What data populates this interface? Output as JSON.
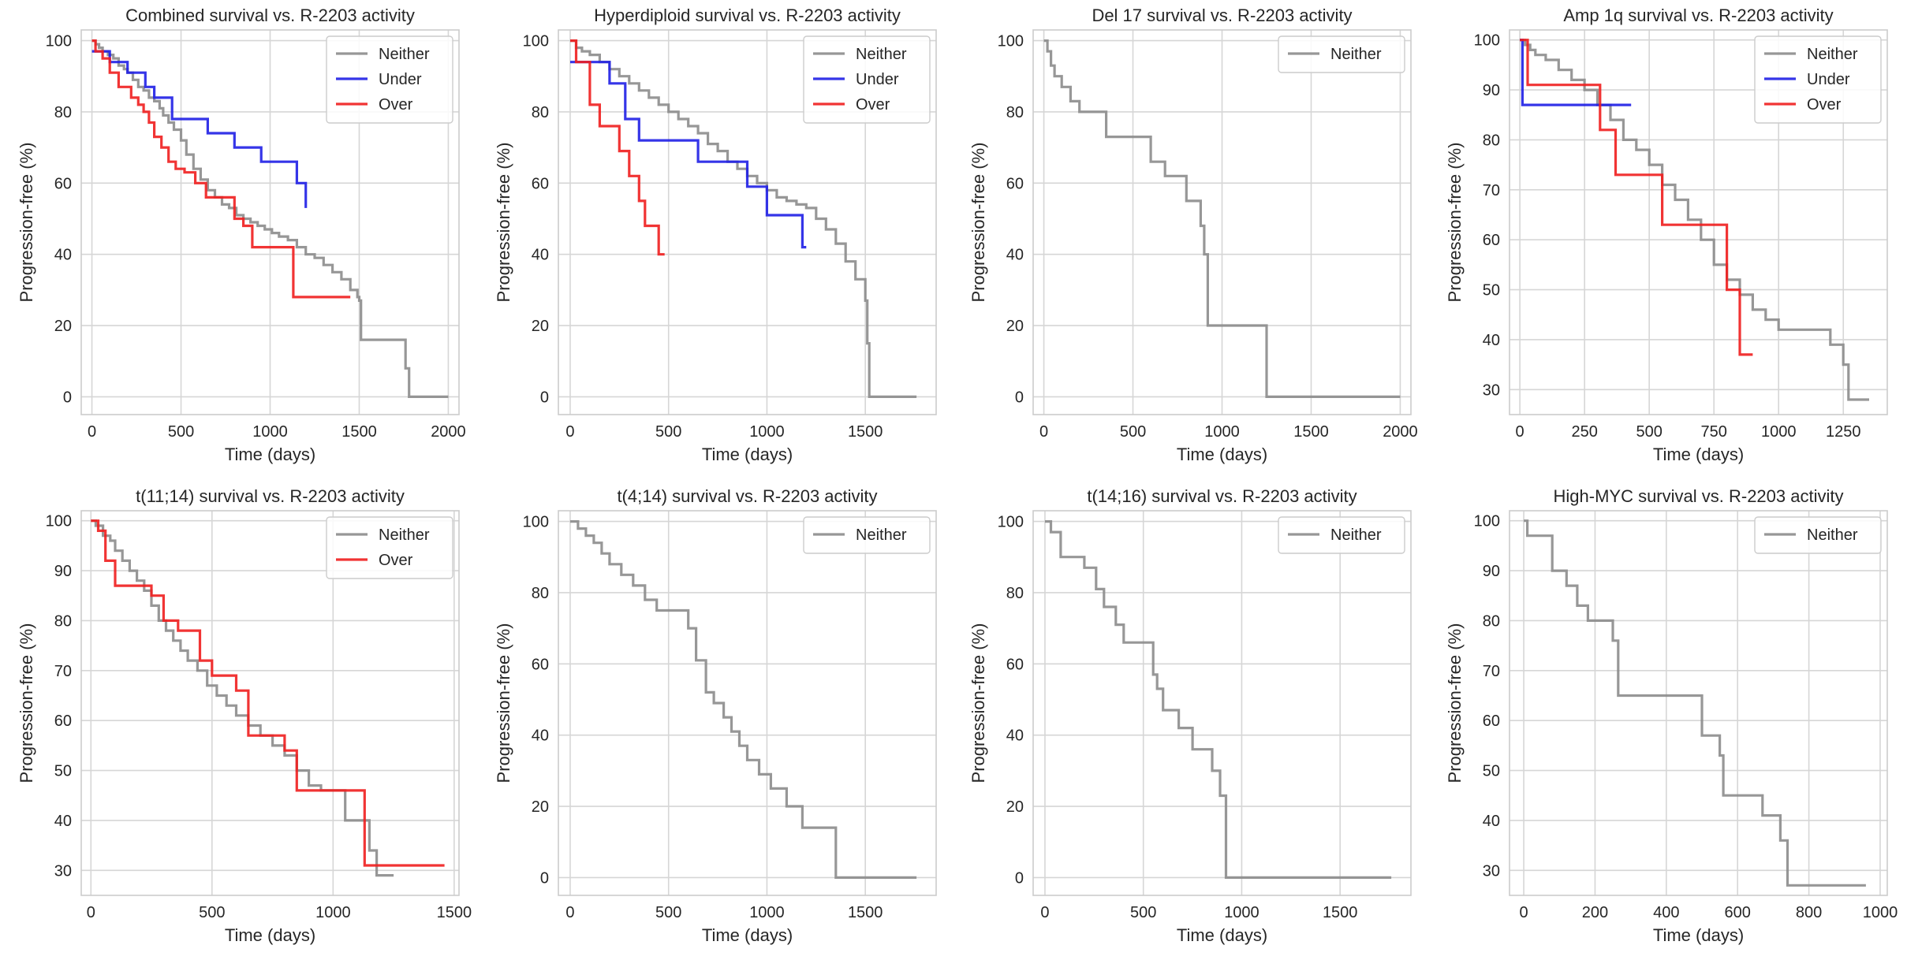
{
  "colors": {
    "Neither": "#8c8c8c",
    "Under": "#1f1fe6",
    "Over": "#f01e1e",
    "grid": "#d6d6d6",
    "frame": "#cccccc"
  },
  "chart_data": [
    {
      "type": "line",
      "step": true,
      "title": "Combined survival vs. R-2203 activity",
      "xlabel": "Time (days)",
      "ylabel": "Progression-free (%)",
      "xlim": [
        -60,
        2060
      ],
      "ylim": [
        -5,
        103
      ],
      "xticks": [
        0,
        500,
        1000,
        1500,
        2000
      ],
      "xtick_labels": [
        "0",
        "500",
        "1000",
        "1500",
        "2000"
      ],
      "yticks": [
        0,
        20,
        40,
        60,
        80,
        100
      ],
      "ytick_labels": [
        "0",
        "20",
        "40",
        "60",
        "80",
        "100"
      ],
      "legend": [
        "Neither",
        "Under",
        "Over"
      ],
      "series": [
        {
          "name": "Neither",
          "x": [
            0,
            20,
            40,
            60,
            90,
            120,
            150,
            180,
            200,
            230,
            260,
            290,
            320,
            350,
            380,
            400,
            430,
            460,
            500,
            530,
            570,
            610,
            650,
            690,
            730,
            770,
            810,
            850,
            890,
            930,
            970,
            1010,
            1050,
            1100,
            1150,
            1200,
            1250,
            1300,
            1350,
            1400,
            1450,
            1490,
            1500,
            1510,
            1750,
            1760,
            1780,
            2000
          ],
          "y": [
            100,
            99,
            98,
            97,
            96,
            95,
            93,
            92,
            91,
            89,
            87,
            86,
            84,
            83,
            81,
            79,
            77,
            75,
            72,
            68,
            64,
            61,
            58,
            56,
            54,
            53,
            51,
            50,
            49,
            48,
            47,
            46,
            45,
            44,
            42,
            40,
            39,
            37,
            35,
            33,
            30,
            28,
            27,
            16,
            16,
            8,
            0,
            0
          ]
        },
        {
          "name": "Under",
          "x": [
            0,
            50,
            100,
            200,
            300,
            350,
            450,
            650,
            800,
            950,
            1150,
            1200
          ],
          "y": [
            97,
            97,
            94,
            91,
            87,
            84,
            78,
            74,
            70,
            66,
            60,
            53
          ]
        },
        {
          "name": "Over",
          "x": [
            0,
            20,
            60,
            100,
            150,
            220,
            260,
            290,
            320,
            350,
            390,
            430,
            470,
            520,
            580,
            640,
            800,
            850,
            900,
            1000,
            1130,
            1450
          ],
          "y": [
            100,
            97,
            95,
            91,
            87,
            84,
            82,
            80,
            77,
            73,
            70,
            66,
            64,
            63,
            60,
            56,
            50,
            48,
            42,
            42,
            28,
            28
          ]
        }
      ]
    },
    {
      "type": "line",
      "step": true,
      "title": "Hyperdiploid survival vs. R-2203 activity",
      "xlabel": "Time (days)",
      "ylabel": "Progression-free (%)",
      "xlim": [
        -60,
        1860
      ],
      "ylim": [
        -5,
        103
      ],
      "xticks": [
        0,
        500,
        1000,
        1500
      ],
      "xtick_labels": [
        "0",
        "500",
        "1000",
        "1500"
      ],
      "yticks": [
        0,
        20,
        40,
        60,
        80,
        100
      ],
      "ytick_labels": [
        "0",
        "20",
        "40",
        "60",
        "80",
        "100"
      ],
      "legend": [
        "Neither",
        "Under",
        "Over"
      ],
      "series": [
        {
          "name": "Neither",
          "x": [
            0,
            30,
            60,
            100,
            150,
            200,
            250,
            300,
            350,
            400,
            450,
            500,
            550,
            600,
            650,
            700,
            750,
            800,
            850,
            900,
            950,
            1000,
            1050,
            1100,
            1150,
            1200,
            1250,
            1300,
            1350,
            1400,
            1450,
            1500,
            1510,
            1520,
            1760
          ],
          "y": [
            100,
            98,
            97,
            96,
            94,
            92,
            90,
            88,
            86,
            84,
            82,
            80,
            78,
            76,
            74,
            71,
            69,
            66,
            64,
            62,
            60,
            58,
            56,
            55,
            54,
            53,
            50,
            47,
            43,
            38,
            33,
            27,
            15,
            0,
            0
          ]
        },
        {
          "name": "Under",
          "x": [
            0,
            200,
            280,
            350,
            500,
            650,
            850,
            900,
            1000,
            1180,
            1200
          ],
          "y": [
            94,
            88,
            78,
            72,
            72,
            66,
            66,
            59,
            51,
            42,
            42
          ]
        },
        {
          "name": "Over",
          "x": [
            0,
            30,
            100,
            150,
            250,
            300,
            350,
            380,
            450,
            480
          ],
          "y": [
            100,
            94,
            82,
            76,
            69,
            62,
            55,
            48,
            40,
            40
          ]
        }
      ]
    },
    {
      "type": "line",
      "step": true,
      "title": "Del 17 survival vs. R-2203 activity",
      "xlabel": "Time (days)",
      "ylabel": "Progression-free (%)",
      "xlim": [
        -60,
        2060
      ],
      "ylim": [
        -5,
        103
      ],
      "xticks": [
        0,
        500,
        1000,
        1500,
        2000
      ],
      "xtick_labels": [
        "0",
        "500",
        "1000",
        "1500",
        "2000"
      ],
      "yticks": [
        0,
        20,
        40,
        60,
        80,
        100
      ],
      "ytick_labels": [
        "0",
        "20",
        "40",
        "60",
        "80",
        "100"
      ],
      "legend": [
        "Neither"
      ],
      "series": [
        {
          "name": "Neither",
          "x": [
            0,
            20,
            40,
            60,
            100,
            150,
            200,
            350,
            600,
            680,
            800,
            880,
            900,
            920,
            1250,
            2000
          ],
          "y": [
            100,
            97,
            93,
            90,
            87,
            83,
            80,
            73,
            66,
            62,
            55,
            48,
            40,
            20,
            0,
            0
          ]
        }
      ]
    },
    {
      "type": "line",
      "step": true,
      "title": "Amp 1q survival vs. R-2203 activity",
      "xlabel": "Time (days)",
      "ylabel": "Progression-free (%)",
      "xlim": [
        -40,
        1420
      ],
      "ylim": [
        25,
        102
      ],
      "xticks": [
        0,
        250,
        500,
        750,
        1000,
        1250
      ],
      "xtick_labels": [
        "0",
        "250",
        "500",
        "750",
        "1000",
        "1250"
      ],
      "yticks": [
        30,
        40,
        50,
        60,
        70,
        80,
        90,
        100
      ],
      "ytick_labels": [
        "30",
        "40",
        "50",
        "60",
        "70",
        "80",
        "90",
        "100"
      ],
      "legend": [
        "Neither",
        "Under",
        "Over"
      ],
      "series": [
        {
          "name": "Neither",
          "x": [
            0,
            20,
            40,
            60,
            100,
            150,
            200,
            250,
            300,
            350,
            400,
            450,
            500,
            550,
            600,
            650,
            700,
            750,
            800,
            850,
            900,
            950,
            1000,
            1100,
            1200,
            1250,
            1270,
            1300,
            1350
          ],
          "y": [
            100,
            99,
            98,
            97,
            96,
            94,
            92,
            90,
            87,
            84,
            80,
            78,
            75,
            71,
            68,
            64,
            60,
            55,
            52,
            49,
            46,
            44,
            42,
            42,
            39,
            35,
            28,
            28,
            28
          ]
        },
        {
          "name": "Under",
          "x": [
            0,
            10,
            430
          ],
          "y": [
            100,
            87,
            87
          ]
        },
        {
          "name": "Over",
          "x": [
            0,
            30,
            310,
            370,
            550,
            800,
            850,
            900
          ],
          "y": [
            100,
            91,
            82,
            73,
            63,
            50,
            37,
            37
          ]
        }
      ]
    },
    {
      "type": "line",
      "step": true,
      "title": "t(11;14) survival vs. R-2203 activity",
      "xlabel": "Time (days)",
      "ylabel": "Progression-free (%)",
      "xlim": [
        -40,
        1520
      ],
      "ylim": [
        25,
        102
      ],
      "xticks": [
        0,
        500,
        1000,
        1500
      ],
      "xtick_labels": [
        "0",
        "500",
        "1000",
        "1500"
      ],
      "yticks": [
        30,
        40,
        50,
        60,
        70,
        80,
        90,
        100
      ],
      "ytick_labels": [
        "30",
        "40",
        "50",
        "60",
        "70",
        "80",
        "90",
        "100"
      ],
      "legend": [
        "Neither",
        "Over"
      ],
      "series": [
        {
          "name": "Neither",
          "x": [
            0,
            20,
            50,
            80,
            100,
            130,
            160,
            190,
            220,
            250,
            280,
            310,
            340,
            370,
            400,
            440,
            480,
            520,
            560,
            600,
            650,
            700,
            750,
            800,
            850,
            900,
            950,
            1000,
            1050,
            1100,
            1150,
            1180,
            1200,
            1250
          ],
          "y": [
            100,
            99,
            97,
            96,
            94,
            92,
            90,
            88,
            86,
            83,
            80,
            78,
            76,
            74,
            72,
            70,
            67,
            65,
            63,
            61,
            59,
            57,
            55,
            53,
            50,
            47,
            46,
            46,
            40,
            40,
            34,
            29,
            29,
            29
          ]
        },
        {
          "name": "Over",
          "x": [
            0,
            30,
            60,
            100,
            250,
            300,
            360,
            450,
            500,
            600,
            650,
            800,
            850,
            1100,
            1130,
            1460
          ],
          "y": [
            100,
            98,
            92,
            87,
            85,
            80,
            78,
            72,
            69,
            66,
            57,
            54,
            46,
            46,
            31,
            31
          ]
        }
      ]
    },
    {
      "type": "line",
      "step": true,
      "title": "t(4;14) survival vs. R-2203 activity",
      "xlabel": "Time (days)",
      "ylabel": "Progression-free (%)",
      "xlim": [
        -60,
        1860
      ],
      "ylim": [
        -5,
        103
      ],
      "xticks": [
        0,
        500,
        1000,
        1500
      ],
      "xtick_labels": [
        "0",
        "500",
        "1000",
        "1500"
      ],
      "yticks": [
        0,
        20,
        40,
        60,
        80,
        100
      ],
      "ytick_labels": [
        "0",
        "20",
        "40",
        "60",
        "80",
        "100"
      ],
      "legend": [
        "Neither"
      ],
      "series": [
        {
          "name": "Neither",
          "x": [
            0,
            40,
            80,
            120,
            160,
            200,
            260,
            320,
            380,
            440,
            500,
            600,
            640,
            690,
            730,
            780,
            820,
            860,
            900,
            960,
            1020,
            1100,
            1180,
            1350,
            1760
          ],
          "y": [
            100,
            98,
            96,
            94,
            91,
            88,
            85,
            82,
            78,
            75,
            75,
            70,
            61,
            52,
            49,
            45,
            41,
            37,
            33,
            29,
            25,
            20,
            14,
            0,
            0
          ]
        }
      ]
    },
    {
      "type": "line",
      "step": true,
      "title": "t(14;16) survival vs. R-2203 activity",
      "xlabel": "Time (days)",
      "ylabel": "Progression-free (%)",
      "xlim": [
        -60,
        1860
      ],
      "ylim": [
        -5,
        103
      ],
      "xticks": [
        0,
        500,
        1000,
        1500
      ],
      "xtick_labels": [
        "0",
        "500",
        "1000",
        "1500"
      ],
      "yticks": [
        0,
        20,
        40,
        60,
        80,
        100
      ],
      "ytick_labels": [
        "0",
        "20",
        "40",
        "60",
        "80",
        "100"
      ],
      "legend": [
        "Neither"
      ],
      "series": [
        {
          "name": "Neither",
          "x": [
            0,
            30,
            80,
            200,
            260,
            300,
            360,
            400,
            550,
            570,
            600,
            680,
            750,
            850,
            890,
            920,
            1760
          ],
          "y": [
            100,
            97,
            90,
            87,
            81,
            76,
            71,
            66,
            57,
            53,
            47,
            42,
            36,
            30,
            23,
            0,
            0
          ]
        }
      ]
    },
    {
      "type": "line",
      "step": true,
      "title": "High-MYC survival vs. R-2203 activity",
      "xlabel": "Time (days)",
      "ylabel": "Progression-free (%)",
      "xlim": [
        -40,
        1020
      ],
      "ylim": [
        25,
        102
      ],
      "xticks": [
        0,
        200,
        400,
        600,
        800,
        1000
      ],
      "xtick_labels": [
        "0",
        "200",
        "400",
        "600",
        "800",
        "1000"
      ],
      "yticks": [
        30,
        40,
        50,
        60,
        70,
        80,
        90,
        100
      ],
      "ytick_labels": [
        "30",
        "40",
        "50",
        "60",
        "70",
        "80",
        "90",
        "100"
      ],
      "legend": [
        "Neither"
      ],
      "series": [
        {
          "name": "Neither",
          "x": [
            0,
            10,
            80,
            120,
            150,
            180,
            250,
            265,
            480,
            500,
            550,
            560,
            670,
            720,
            740,
            960
          ],
          "y": [
            100,
            97,
            90,
            87,
            83,
            80,
            76,
            65,
            65,
            57,
            53,
            45,
            41,
            36,
            27,
            27
          ]
        }
      ]
    }
  ]
}
